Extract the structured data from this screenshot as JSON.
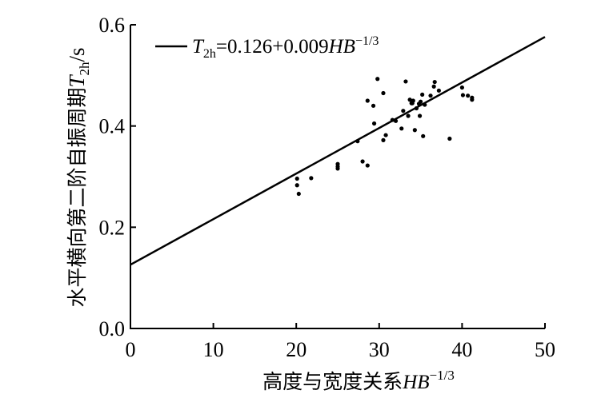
{
  "chart_data": {
    "type": "scatter",
    "xlabel": {
      "text": "高度与宽度关系",
      "var": "HB",
      "sup": "−1/3"
    },
    "ylabel": {
      "text": "水平横向第二阶自振周期",
      "var": "T",
      "sub": "2h",
      "unit": "/s"
    },
    "xlim": [
      0,
      50
    ],
    "ylim": [
      0.0,
      0.6
    ],
    "xticks": [
      "0",
      "10",
      "20",
      "30",
      "40",
      "50"
    ],
    "yticks": [
      "0.0",
      "0.2",
      "0.4",
      "0.6"
    ],
    "grid": false,
    "legend_position": "top-left",
    "fit_line": {
      "intercept": 0.126,
      "slope": 0.009,
      "label": {
        "var": "T",
        "sub": "2h",
        "rest": "=0.126+0.009",
        "var2": "HB",
        "sup": "−1/3"
      }
    },
    "points": [
      {
        "x": 20.1,
        "y": 0.296
      },
      {
        "x": 20.1,
        "y": 0.283
      },
      {
        "x": 20.3,
        "y": 0.266
      },
      {
        "x": 21.8,
        "y": 0.297
      },
      {
        "x": 25.0,
        "y": 0.325
      },
      {
        "x": 25.0,
        "y": 0.32
      },
      {
        "x": 25.0,
        "y": 0.316
      },
      {
        "x": 27.4,
        "y": 0.37
      },
      {
        "x": 28.0,
        "y": 0.33
      },
      {
        "x": 28.6,
        "y": 0.322
      },
      {
        "x": 28.6,
        "y": 0.45
      },
      {
        "x": 29.3,
        "y": 0.44
      },
      {
        "x": 29.4,
        "y": 0.405
      },
      {
        "x": 29.8,
        "y": 0.493
      },
      {
        "x": 30.5,
        "y": 0.465
      },
      {
        "x": 30.5,
        "y": 0.372
      },
      {
        "x": 30.8,
        "y": 0.382
      },
      {
        "x": 31.6,
        "y": 0.412
      },
      {
        "x": 32.0,
        "y": 0.41
      },
      {
        "x": 32.7,
        "y": 0.395
      },
      {
        "x": 32.9,
        "y": 0.43
      },
      {
        "x": 33.2,
        "y": 0.488
      },
      {
        "x": 33.5,
        "y": 0.42
      },
      {
        "x": 33.7,
        "y": 0.452
      },
      {
        "x": 33.9,
        "y": 0.445
      },
      {
        "x": 34.0,
        "y": 0.445
      },
      {
        "x": 34.1,
        "y": 0.45
      },
      {
        "x": 34.3,
        "y": 0.392
      },
      {
        "x": 34.5,
        "y": 0.435
      },
      {
        "x": 34.8,
        "y": 0.444
      },
      {
        "x": 34.9,
        "y": 0.42
      },
      {
        "x": 35.0,
        "y": 0.448
      },
      {
        "x": 35.2,
        "y": 0.462
      },
      {
        "x": 35.3,
        "y": 0.38
      },
      {
        "x": 35.5,
        "y": 0.442
      },
      {
        "x": 36.2,
        "y": 0.46
      },
      {
        "x": 36.6,
        "y": 0.478
      },
      {
        "x": 36.7,
        "y": 0.487
      },
      {
        "x": 37.2,
        "y": 0.47
      },
      {
        "x": 38.5,
        "y": 0.375
      },
      {
        "x": 40.0,
        "y": 0.476
      },
      {
        "x": 40.1,
        "y": 0.461
      },
      {
        "x": 40.7,
        "y": 0.46
      },
      {
        "x": 41.2,
        "y": 0.456
      },
      {
        "x": 41.2,
        "y": 0.452
      }
    ]
  }
}
